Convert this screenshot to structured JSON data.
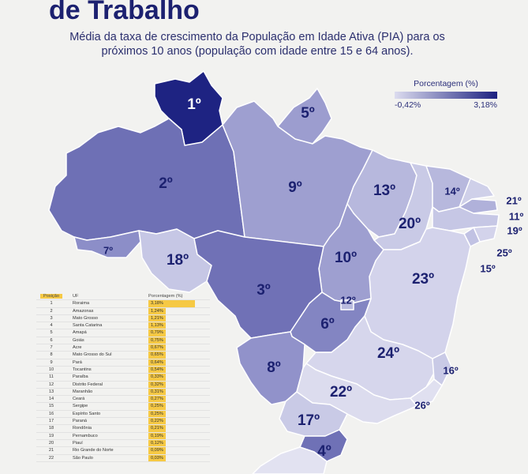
{
  "header": {
    "title": "de Trabalho",
    "subtitle": "Média da taxa de crescimento da População em Idade Ativa (PIA) para os próximos 10 anos (população com idade entre 15 e 64 anos)."
  },
  "legend": {
    "title": "Porcentagem (%)",
    "min": "-0,42%",
    "max": "3,18%"
  },
  "map_labels": [
    "1º",
    "5º",
    "2º",
    "9º",
    "13º",
    "14º",
    "21º",
    "11º",
    "19º",
    "25º",
    "15º",
    "20º",
    "7º",
    "18º",
    "10º",
    "23º",
    "3º",
    "12º",
    "6º",
    "24º",
    "16º",
    "8º",
    "22º",
    "26º",
    "17º",
    "4º"
  ],
  "table": {
    "columns": [
      "Posição",
      "UF",
      "Porcentagem (%)"
    ],
    "rows": [
      [
        "1",
        "Roraima",
        "3,18%"
      ],
      [
        "2",
        "Amazonas",
        "1,24%"
      ],
      [
        "3",
        "Mato Grosso",
        "1,21%"
      ],
      [
        "4",
        "Santa Catarina",
        "1,13%"
      ],
      [
        "5",
        "Amapá",
        "0,79%"
      ],
      [
        "6",
        "Goiás",
        "0,75%"
      ],
      [
        "7",
        "Acre",
        "0,67%"
      ],
      [
        "8",
        "Mato Grosso do Sul",
        "0,65%"
      ],
      [
        "9",
        "Pará",
        "0,64%"
      ],
      [
        "10",
        "Tocantins",
        "0,54%"
      ],
      [
        "11",
        "Paraíba",
        "0,33%"
      ],
      [
        "12",
        "Distrito Federal",
        "0,32%"
      ],
      [
        "13",
        "Maranhão",
        "0,31%"
      ],
      [
        "14",
        "Ceará",
        "0,27%"
      ],
      [
        "15",
        "Sergipe",
        "0,25%"
      ],
      [
        "16",
        "Espírito Santo",
        "0,25%"
      ],
      [
        "17",
        "Paraná",
        "0,22%"
      ],
      [
        "18",
        "Rondônia",
        "0,21%"
      ],
      [
        "19",
        "Pernambuco",
        "0,19%"
      ],
      [
        "20",
        "Piauí",
        "0,12%"
      ],
      [
        "21",
        "Rio Grande do Norte",
        "0,09%"
      ],
      [
        "22",
        "São Paulo",
        "0,03%"
      ]
    ]
  }
}
